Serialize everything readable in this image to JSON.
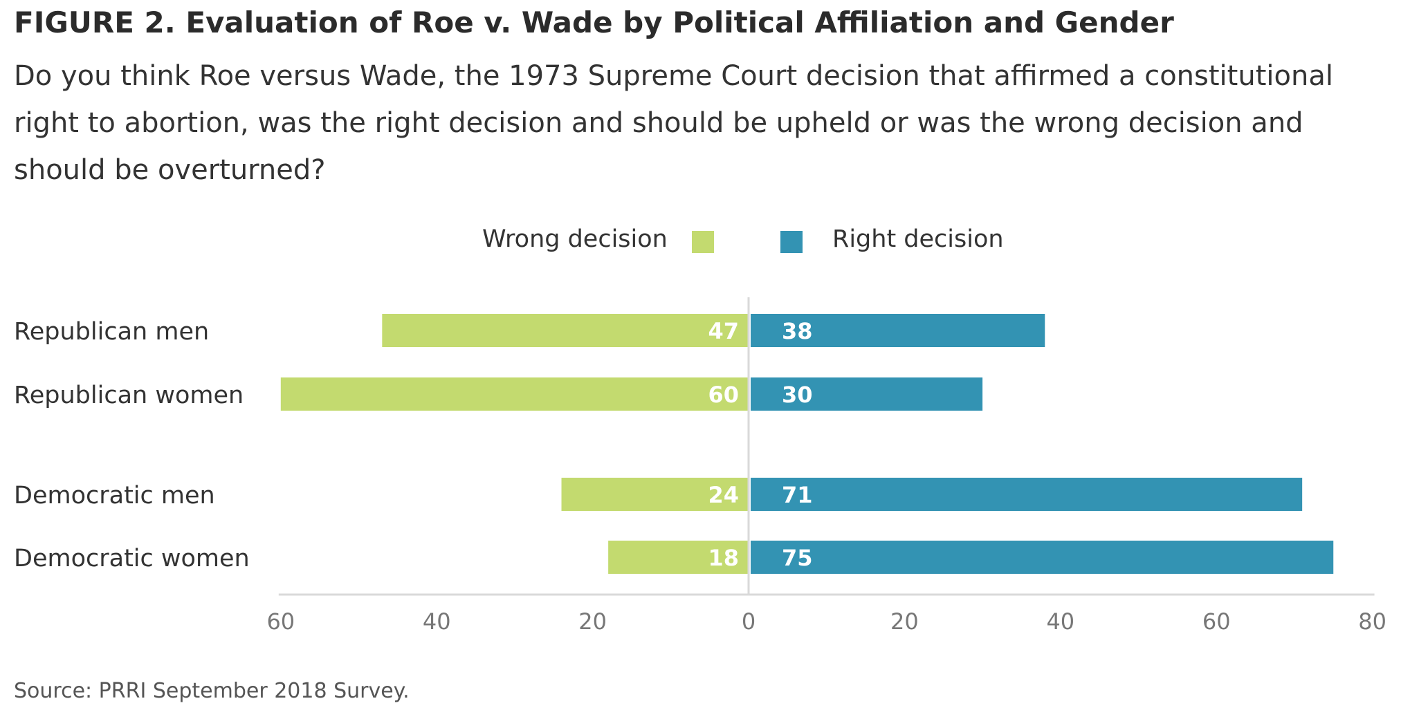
{
  "title": "FIGURE 2. Evaluation of Roe v. Wade by Political Affiliation and Gender",
  "question": "Do you think Roe versus Wade, the 1973 Supreme Court decision that affirmed a constitutional right to abortion, was the right decision and should be upheld or was the wrong decision and should be overturned?",
  "source": "Source: PRRI September 2018 Survey.",
  "colors": {
    "wrong": "#c3da6f",
    "right": "#3393b3",
    "axis": "#d9d9d9",
    "tick_text": "#777777",
    "label_text": "#333333"
  },
  "chart_data": {
    "type": "bar",
    "orientation": "horizontal-diverging",
    "categories": [
      "Republican men",
      "Republican women",
      "Democratic men",
      "Democratic women"
    ],
    "series": [
      {
        "name": "Wrong decision",
        "values": [
          47,
          60,
          24,
          18
        ]
      },
      {
        "name": "Right decision",
        "values": [
          38,
          30,
          71,
          75
        ]
      }
    ],
    "xlim": [
      -60,
      80
    ],
    "x_ticks": [
      -60,
      -40,
      -20,
      0,
      20,
      40,
      60,
      80
    ],
    "x_tick_labels": [
      "60",
      "40",
      "20",
      "0",
      "20",
      "40",
      "60",
      "80"
    ],
    "legend_placement": "top-center",
    "grid": false
  }
}
